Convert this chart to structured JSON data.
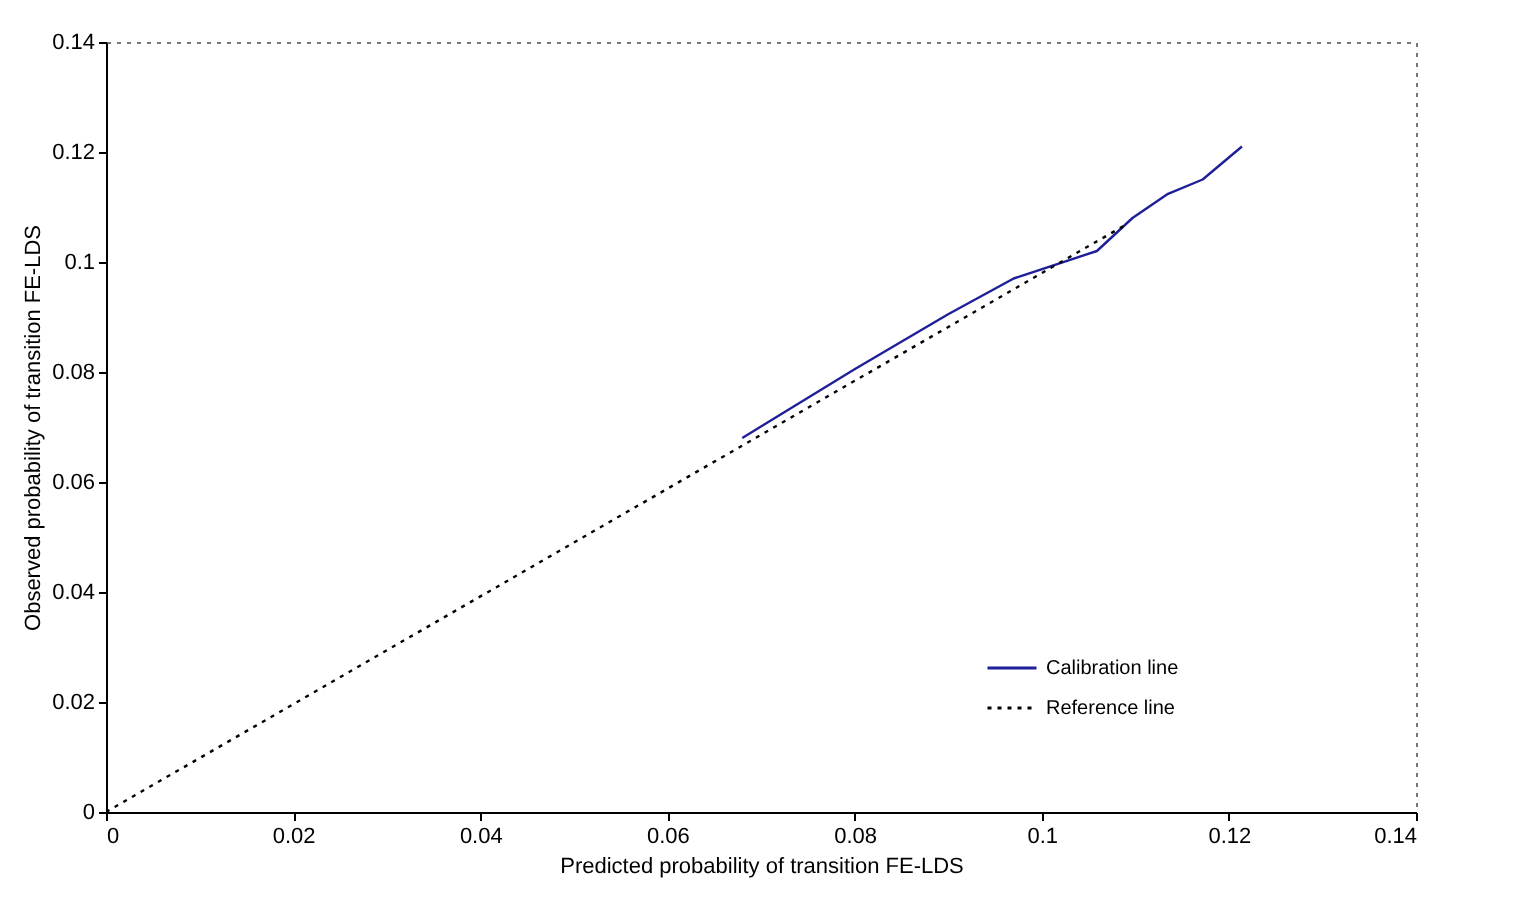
{
  "chart_data": {
    "type": "line",
    "xlabel": "Predicted probability of transition FE-LDS",
    "ylabel": "Observed probability of transition FE-LDS",
    "xlim": [
      0,
      0.14
    ],
    "xticks": [
      0,
      0.02,
      0.04,
      0.06,
      0.08,
      0.1,
      0.12,
      0.14
    ],
    "ylim": [
      0,
      0.14
    ],
    "yticks": [
      0,
      0.02,
      0.04,
      0.06,
      0.08,
      0.1,
      0.12,
      0.14
    ],
    "grid": false,
    "legend": "bottom right",
    "marker": "none",
    "series": [
      {
        "name": "Calibration line",
        "color": "#1f1f99",
        "line_style": "solid",
        "x": [
          0.068,
          0.08,
          0.09,
          0.097,
          0.1059,
          0.1097,
          0.1135,
          0.1172,
          0.1214
        ],
        "values": [
          0.068,
          0.0805,
          0.0905,
          0.097,
          0.102,
          0.108,
          0.1124,
          0.115,
          0.121
        ]
      },
      {
        "name": "Reference line",
        "color": "#000000",
        "line_style": "dotted",
        "x": [
          0,
          0.1087
        ],
        "values": [
          0,
          0.1065
        ]
      }
    ]
  }
}
